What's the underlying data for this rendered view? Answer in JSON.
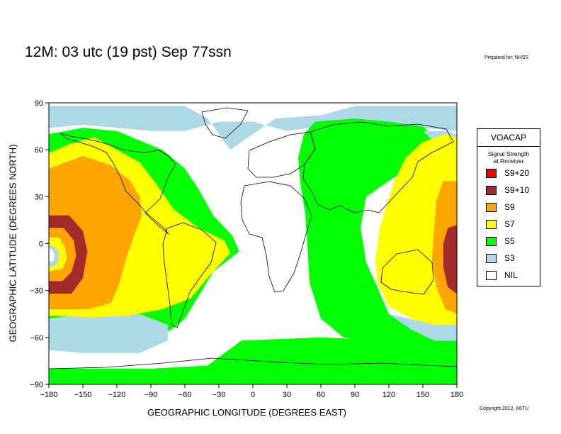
{
  "title": "12M:  03 utc (19 pst) Sep 77ssn",
  "prepared_for": "Prepared for: NHSS",
  "copyright": "Copyright 2012, K6TU",
  "legend": {
    "title": "VOACAP",
    "subtitle_line1": "Signal Strength",
    "subtitle_line2": "at Receiver",
    "items": [
      {
        "label": "S9+20",
        "color": "#ff0000"
      },
      {
        "label": "S9+10",
        "color": "#a52a2a"
      },
      {
        "label": "S9",
        "color": "#ffa500"
      },
      {
        "label": "S7",
        "color": "#ffff00"
      },
      {
        "label": "S5",
        "color": "#00ff00"
      },
      {
        "label": "S3",
        "color": "#add8e6"
      },
      {
        "label": "NIL",
        "color": "#ffffff"
      }
    ]
  },
  "chart_data": {
    "type": "heatmap",
    "title": "12M:  03 utc (19 pst) Sep 77ssn",
    "xlabel": "GEOGRAPHIC LONGITUDE (DEGREES EAST)",
    "ylabel": "GEOGRAPHIC LATITUDE (DEGREES NORTH)",
    "xlim": [
      -180,
      180
    ],
    "ylim": [
      -90,
      90
    ],
    "xticks": [
      -180,
      -150,
      -120,
      -90,
      -60,
      -30,
      0,
      30,
      60,
      90,
      120,
      150,
      180
    ],
    "yticks": [
      90,
      60,
      30,
      0,
      -30,
      -60,
      -90
    ],
    "xtick_labels": [
      "−180",
      "−150",
      "−120",
      "−90",
      "−60",
      "−30",
      "0",
      "30",
      "60",
      "90",
      "120",
      "150",
      "180"
    ],
    "ytick_labels": [
      "90",
      "60",
      "30",
      "0",
      "−30",
      "−60",
      "−90"
    ],
    "levels": [
      "S9+20",
      "S9+10",
      "S9",
      "S7",
      "S5",
      "S3",
      "NIL"
    ],
    "regions": [
      {
        "level": "S5",
        "points": [
          [
            -180,
            70
          ],
          [
            -150,
            74
          ],
          [
            -120,
            72
          ],
          [
            -80,
            60
          ],
          [
            -60,
            48
          ],
          [
            -48,
            35
          ],
          [
            -35,
            18
          ],
          [
            -18,
            5
          ],
          [
            -12,
            -5
          ],
          [
            -35,
            -18
          ],
          [
            -45,
            -30
          ],
          [
            -60,
            -48
          ],
          [
            -72,
            -55
          ],
          [
            -90,
            -62
          ],
          [
            -110,
            -66
          ],
          [
            -150,
            -66
          ],
          [
            -180,
            -66
          ]
        ]
      },
      {
        "level": "S3",
        "points": [
          [
            -140,
            -42
          ],
          [
            -100,
            -45
          ],
          [
            -75,
            -52
          ],
          [
            -75,
            -62
          ],
          [
            -100,
            -70
          ],
          [
            -150,
            -70
          ],
          [
            -180,
            -68
          ],
          [
            -180,
            -48
          ],
          [
            -160,
            -46
          ]
        ]
      },
      {
        "level": "S7",
        "points": [
          [
            -180,
            58
          ],
          [
            -160,
            64
          ],
          [
            -140,
            68
          ],
          [
            -120,
            60
          ],
          [
            -100,
            52
          ],
          [
            -85,
            38
          ],
          [
            -70,
            22
          ],
          [
            -48,
            10
          ],
          [
            -25,
            2
          ],
          [
            -20,
            -6
          ],
          [
            -40,
            -22
          ],
          [
            -55,
            -35
          ],
          [
            -80,
            -42
          ],
          [
            -110,
            -46
          ],
          [
            -140,
            -47
          ],
          [
            -180,
            -46
          ]
        ]
      },
      {
        "level": "S9",
        "points": [
          [
            -180,
            48
          ],
          [
            -150,
            56
          ],
          [
            -125,
            50
          ],
          [
            -108,
            40
          ],
          [
            -100,
            30
          ],
          [
            -98,
            18
          ],
          [
            -105,
            5
          ],
          [
            -112,
            -10
          ],
          [
            -118,
            -26
          ],
          [
            -125,
            -38
          ],
          [
            -145,
            -42
          ],
          [
            -180,
            -42
          ]
        ]
      },
      {
        "level": "S9+10",
        "points": [
          [
            -180,
            18
          ],
          [
            -162,
            18
          ],
          [
            -150,
            8
          ],
          [
            -146,
            -5
          ],
          [
            -150,
            -22
          ],
          [
            -160,
            -32
          ],
          [
            -180,
            -32
          ]
        ]
      },
      {
        "level": "S9",
        "points": [
          [
            -180,
            10
          ],
          [
            -167,
            10
          ],
          [
            -158,
            2
          ],
          [
            -156,
            -8
          ],
          [
            -160,
            -18
          ],
          [
            -168,
            -24
          ],
          [
            -180,
            -24
          ]
        ]
      },
      {
        "level": "S7",
        "points": [
          [
            -180,
            4
          ],
          [
            -171,
            4
          ],
          [
            -166,
            -2
          ],
          [
            -164,
            -10
          ],
          [
            -168,
            -16
          ],
          [
            -180,
            -18
          ]
        ]
      },
      {
        "level": "S3",
        "points": [
          [
            -180,
            -1
          ],
          [
            -175,
            -2
          ],
          [
            -171,
            -6
          ],
          [
            -172,
            -12
          ],
          [
            -176,
            -15
          ],
          [
            -180,
            -14
          ]
        ]
      },
      {
        "level": "NIL",
        "points": [
          [
            -180,
            -3
          ],
          [
            -177,
            -4
          ],
          [
            -175,
            -7
          ],
          [
            -176,
            -11
          ],
          [
            -180,
            -12
          ]
        ]
      },
      {
        "level": "S3",
        "points": [
          [
            -180,
            88
          ],
          [
            -60,
            88
          ],
          [
            -40,
            80
          ],
          [
            -20,
            60
          ],
          [
            20,
            80
          ],
          [
            60,
            82
          ],
          [
            90,
            88
          ],
          [
            180,
            88
          ],
          [
            180,
            72
          ],
          [
            150,
            74
          ],
          [
            120,
            70
          ],
          [
            90,
            75
          ],
          [
            60,
            75
          ],
          [
            30,
            72
          ],
          [
            0,
            78
          ],
          [
            -30,
            78
          ],
          [
            -60,
            72
          ],
          [
            -90,
            72
          ],
          [
            -120,
            74
          ],
          [
            -150,
            76
          ],
          [
            -180,
            74
          ]
        ]
      },
      {
        "level": "S5",
        "points": [
          [
            55,
            78
          ],
          [
            90,
            80
          ],
          [
            120,
            78
          ],
          [
            150,
            75
          ],
          [
            160,
            68
          ],
          [
            140,
            50
          ],
          [
            120,
            40
          ],
          [
            100,
            30
          ],
          [
            95,
            10
          ],
          [
            100,
            -12
          ],
          [
            110,
            -28
          ],
          [
            120,
            -45
          ],
          [
            140,
            -55
          ],
          [
            160,
            -62
          ],
          [
            180,
            -62
          ],
          [
            180,
            -72
          ],
          [
            120,
            -65
          ],
          [
            80,
            -60
          ],
          [
            60,
            -48
          ],
          [
            50,
            -25
          ],
          [
            48,
            0
          ],
          [
            46,
            20
          ],
          [
            42,
            38
          ],
          [
            40,
            55
          ],
          [
            45,
            70
          ]
        ]
      },
      {
        "level": "S3",
        "points": [
          [
            120,
            -45
          ],
          [
            150,
            -50
          ],
          [
            180,
            -50
          ],
          [
            180,
            -62
          ],
          [
            160,
            -62
          ],
          [
            140,
            -55
          ]
        ]
      },
      {
        "level": "S3",
        "points": [
          [
            150,
            72
          ],
          [
            170,
            72
          ],
          [
            180,
            70
          ],
          [
            180,
            55
          ],
          [
            168,
            60
          ]
        ]
      },
      {
        "level": "S7",
        "points": [
          [
            170,
            70
          ],
          [
            150,
            65
          ],
          [
            135,
            55
          ],
          [
            125,
            40
          ],
          [
            118,
            25
          ],
          [
            112,
            10
          ],
          [
            108,
            -10
          ],
          [
            110,
            -25
          ],
          [
            120,
            -40
          ],
          [
            140,
            -48
          ],
          [
            160,
            -52
          ],
          [
            180,
            -52
          ],
          [
            180,
            68
          ]
        ]
      },
      {
        "level": "S9",
        "points": [
          [
            180,
            40
          ],
          [
            168,
            40
          ],
          [
            162,
            28
          ],
          [
            160,
            10
          ],
          [
            158,
            -10
          ],
          [
            162,
            -28
          ],
          [
            170,
            -42
          ],
          [
            180,
            -45
          ]
        ]
      },
      {
        "level": "S9+10",
        "points": [
          [
            180,
            12
          ],
          [
            172,
            10
          ],
          [
            168,
            0
          ],
          [
            168,
            -15
          ],
          [
            172,
            -28
          ],
          [
            180,
            -32
          ]
        ]
      },
      {
        "level": "S5",
        "points": [
          [
            -10,
            -62
          ],
          [
            60,
            -60
          ],
          [
            120,
            -62
          ],
          [
            180,
            -64
          ],
          [
            180,
            -90
          ],
          [
            -180,
            -90
          ],
          [
            -180,
            -80
          ],
          [
            -90,
            -80
          ],
          [
            -40,
            -78
          ]
        ]
      }
    ]
  }
}
